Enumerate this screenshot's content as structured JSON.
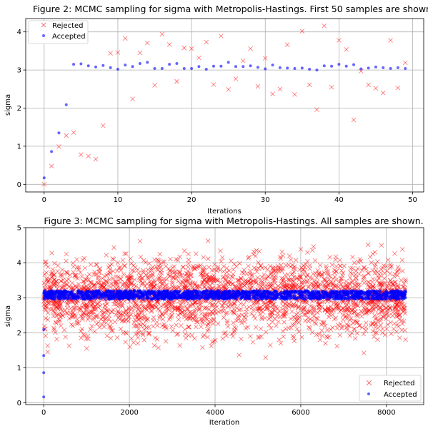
{
  "chart_data": [
    {
      "type": "scatter",
      "title": "Figure 2: MCMC sampling for sigma with Metropolis-Hastings. First 50 samples are shown.",
      "xlabel": "Iterations",
      "ylabel": "sigma",
      "xlim": [
        -2.5,
        51.5
      ],
      "ylim": [
        -0.2,
        4.35
      ],
      "x_ticks": [
        0,
        10,
        20,
        30,
        40,
        50
      ],
      "y_ticks": [
        0,
        1,
        2,
        3,
        4
      ],
      "grid": true,
      "legend_position": "top-left",
      "series": [
        {
          "name": "Rejected",
          "marker": "x",
          "color": "#ff0000",
          "points": [
            [
              0,
              0.0
            ],
            [
              1,
              0.48
            ],
            [
              2,
              0.99
            ],
            [
              3,
              1.28
            ],
            [
              4,
              1.36
            ],
            [
              5,
              0.78
            ],
            [
              6,
              0.74
            ],
            [
              7,
              0.66
            ],
            [
              8,
              1.54
            ],
            [
              9,
              3.44
            ],
            [
              10,
              3.46
            ],
            [
              11,
              3.83
            ],
            [
              12,
              2.24
            ],
            [
              13,
              3.45
            ],
            [
              14,
              3.71
            ],
            [
              15,
              2.6
            ],
            [
              16,
              3.94
            ],
            [
              17,
              3.67
            ],
            [
              18,
              2.7
            ],
            [
              19,
              3.58
            ],
            [
              20,
              3.56
            ],
            [
              21,
              3.32
            ],
            [
              22,
              3.73
            ],
            [
              23,
              2.62
            ],
            [
              24,
              3.89
            ],
            [
              25,
              2.49
            ],
            [
              26,
              2.77
            ],
            [
              27,
              3.24
            ],
            [
              28,
              3.56
            ],
            [
              29,
              2.57
            ],
            [
              30,
              3.31
            ],
            [
              31,
              2.37
            ],
            [
              32,
              2.5
            ],
            [
              33,
              3.66
            ],
            [
              34,
              2.36
            ],
            [
              35,
              4.02
            ],
            [
              36,
              2.61
            ],
            [
              37,
              1.96
            ],
            [
              38,
              4.16
            ],
            [
              39,
              2.55
            ],
            [
              40,
              3.78
            ],
            [
              41,
              3.54
            ],
            [
              42,
              1.69
            ],
            [
              43,
              2.97
            ],
            [
              44,
              2.61
            ],
            [
              45,
              2.52
            ],
            [
              46,
              2.4
            ],
            [
              47,
              3.78
            ],
            [
              48,
              2.53
            ],
            [
              49,
              3.19
            ]
          ]
        },
        {
          "name": "Accepted",
          "marker": "dot",
          "color": "#0000ff",
          "points": [
            [
              0,
              0.17
            ],
            [
              1,
              0.86
            ],
            [
              2,
              1.35
            ],
            [
              3,
              2.09
            ],
            [
              4,
              3.15
            ],
            [
              5,
              3.16
            ],
            [
              6,
              3.11
            ],
            [
              7,
              3.08
            ],
            [
              8,
              3.12
            ],
            [
              9,
              3.06
            ],
            [
              10,
              3.02
            ],
            [
              11,
              3.13
            ],
            [
              12,
              3.09
            ],
            [
              13,
              3.17
            ],
            [
              14,
              3.2
            ],
            [
              15,
              3.04
            ],
            [
              16,
              3.04
            ],
            [
              17,
              3.15
            ],
            [
              18,
              3.17
            ],
            [
              19,
              3.04
            ],
            [
              20,
              3.04
            ],
            [
              21,
              3.09
            ],
            [
              22,
              3.02
            ],
            [
              23,
              3.1
            ],
            [
              24,
              3.1
            ],
            [
              25,
              3.2
            ],
            [
              26,
              3.09
            ],
            [
              27,
              3.09
            ],
            [
              28,
              3.11
            ],
            [
              29,
              3.07
            ],
            [
              30,
              3.03
            ],
            [
              31,
              3.13
            ],
            [
              32,
              3.06
            ],
            [
              33,
              3.05
            ],
            [
              34,
              3.04
            ],
            [
              35,
              3.05
            ],
            [
              36,
              3.02
            ],
            [
              37,
              3.0
            ],
            [
              38,
              3.11
            ],
            [
              39,
              3.1
            ],
            [
              40,
              3.15
            ],
            [
              41,
              3.1
            ],
            [
              42,
              3.14
            ],
            [
              43,
              3.03
            ],
            [
              44,
              3.05
            ],
            [
              45,
              3.08
            ],
            [
              46,
              3.06
            ],
            [
              47,
              3.04
            ],
            [
              48,
              3.06
            ],
            [
              49,
              3.04
            ]
          ]
        }
      ]
    },
    {
      "type": "scatter",
      "title": "Figure 3: MCMC sampling for sigma with Metropolis-Hastings. All samples are shown.",
      "xlabel": "Iteration",
      "ylabel": "sigma",
      "xlim": [
        -420,
        8870
      ],
      "ylim": [
        -0.05,
        5.0
      ],
      "x_ticks": [
        0,
        2000,
        4000,
        6000,
        8000
      ],
      "y_ticks": [
        0,
        1,
        2,
        3,
        4,
        5
      ],
      "grid": true,
      "legend_position": "bottom-right",
      "n_samples": 8450,
      "series": [
        {
          "name": "Rejected",
          "marker": "x",
          "color": "#ff0000",
          "distribution": {
            "center": 3.05,
            "spread": 0.55,
            "min": 1.0,
            "max": 4.85
          }
        },
        {
          "name": "Accepted",
          "marker": "dot",
          "color": "#0000ff",
          "distribution": {
            "center": 3.08,
            "spread": 0.06,
            "min": 2.95,
            "max": 3.22
          },
          "initial_points": [
            [
              0,
              0.17
            ],
            [
              0,
              0.86
            ],
            [
              0,
              1.35
            ],
            [
              0,
              2.09
            ]
          ]
        }
      ]
    }
  ]
}
